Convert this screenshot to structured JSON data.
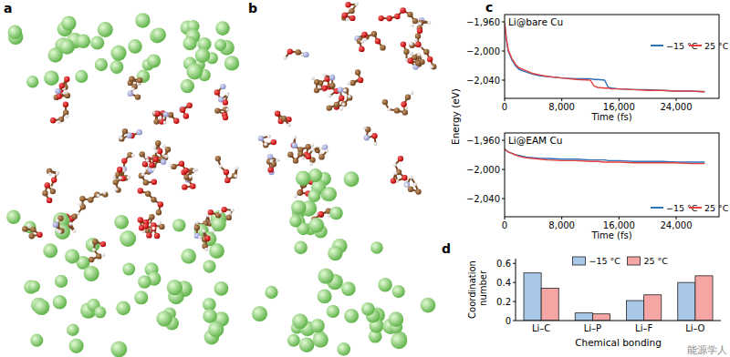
{
  "panel_labels": [
    "a",
    "b"
  ],
  "watermark": "能源学人",
  "chart_data": [
    {
      "type": "line",
      "panel": "c",
      "title": "Li@bare Cu",
      "x_label": "Time (fs)",
      "y_label": "Energy (eV)",
      "x": [
        0,
        250,
        500,
        1000,
        1500,
        2000,
        3000,
        4000,
        5000,
        6000,
        8000,
        10000,
        12000,
        12500,
        13000,
        14000,
        14500,
        15000,
        16000,
        18000,
        20000,
        22000,
        24000,
        26000,
        28000
      ],
      "xlim": [
        0,
        30000
      ],
      "xticks": [
        0,
        {
          "value": 8000,
          "label": "8,000"
        },
        {
          "value": 16000,
          "label": "16,000"
        },
        {
          "value": 24000,
          "label": "24,000"
        }
      ],
      "ylim": [
        -2065,
        -1950
      ],
      "yticks": [
        {
          "value": -1960,
          "label": "−1,960"
        },
        {
          "value": -2000,
          "label": "−2,000"
        },
        {
          "value": -2040,
          "label": "−2,040"
        }
      ],
      "grid": false,
      "legend": "right",
      "series": [
        {
          "name": "−15 °C",
          "color": "#2e6fb7",
          "values": [
            -1962,
            -1985,
            -2000,
            -2012,
            -2020,
            -2025,
            -2029,
            -2032,
            -2034,
            -2035,
            -2037,
            -2038,
            -2038,
            -2039,
            -2039,
            -2040,
            -2050,
            -2051,
            -2052,
            -2053,
            -2053,
            -2054,
            -2055,
            -2055,
            -2056
          ]
        },
        {
          "name": "25 °C",
          "color": "#e2413f",
          "values": [
            -1962,
            -1983,
            -1998,
            -2010,
            -2018,
            -2023,
            -2027,
            -2031,
            -2033,
            -2035,
            -2037,
            -2039,
            -2040,
            -2048,
            -2050,
            -2051,
            -2051,
            -2052,
            -2052,
            -2053,
            -2054,
            -2054,
            -2055,
            -2055,
            -2056
          ]
        }
      ]
    },
    {
      "type": "line",
      "title": "Li@EAM Cu",
      "x_label": "Time (fs)",
      "x": [
        0,
        250,
        500,
        1000,
        1500,
        2000,
        3000,
        4000,
        5000,
        6000,
        8000,
        10000,
        12000,
        12500,
        13000,
        14000,
        14500,
        15000,
        16000,
        18000,
        20000,
        22000,
        24000,
        26000,
        28000
      ],
      "xlim": [
        0,
        30000
      ],
      "xticks": [
        0,
        {
          "value": 8000,
          "label": "8,000"
        },
        {
          "value": 16000,
          "label": "16,000"
        },
        {
          "value": 24000,
          "label": "24,000"
        }
      ],
      "ylim": [
        -2065,
        -1950
      ],
      "yticks": [
        {
          "value": -1960,
          "label": "−1,960"
        },
        {
          "value": -2000,
          "label": "−2,000"
        },
        {
          "value": -2040,
          "label": "−2,040"
        }
      ],
      "grid": false,
      "legend": "lower right",
      "series": [
        {
          "name": "−15 °C",
          "color": "#2e6fb7",
          "values": [
            -1972,
            -1974,
            -1976,
            -1978,
            -1980,
            -1981,
            -1983,
            -1984,
            -1985,
            -1985,
            -1986,
            -1986,
            -1987,
            -1987,
            -1987,
            -1987,
            -1988,
            -1988,
            -1988,
            -1989,
            -1989,
            -1989,
            -1990,
            -1990,
            -1990
          ]
        },
        {
          "name": "25 °C",
          "color": "#e2413f",
          "values": [
            -1972,
            -1974,
            -1976,
            -1978,
            -1980,
            -1982,
            -1984,
            -1985,
            -1986,
            -1987,
            -1988,
            -1988,
            -1989,
            -1989,
            -1989,
            -1990,
            -1990,
            -1990,
            -1990,
            -1991,
            -1991,
            -1991,
            -1991,
            -1992,
            -1992
          ]
        }
      ]
    },
    {
      "type": "bar",
      "panel": "d",
      "x_label": "Chemical bonding",
      "y_label": "Coordination number",
      "categories": [
        "Li–C",
        "Li–P",
        "Li–F",
        "Li–O"
      ],
      "ylim": [
        0,
        0.65
      ],
      "yticks": [
        0,
        0.2,
        0.4,
        0.6
      ],
      "grid": false,
      "legend": "upper center",
      "series": [
        {
          "name": "−15 °C",
          "color": "#a9c8e8",
          "values": [
            0.5,
            0.08,
            0.21,
            0.4
          ]
        },
        {
          "name": "25 °C",
          "color": "#f6a5a5",
          "values": [
            0.34,
            0.07,
            0.27,
            0.47
          ]
        }
      ]
    }
  ]
}
